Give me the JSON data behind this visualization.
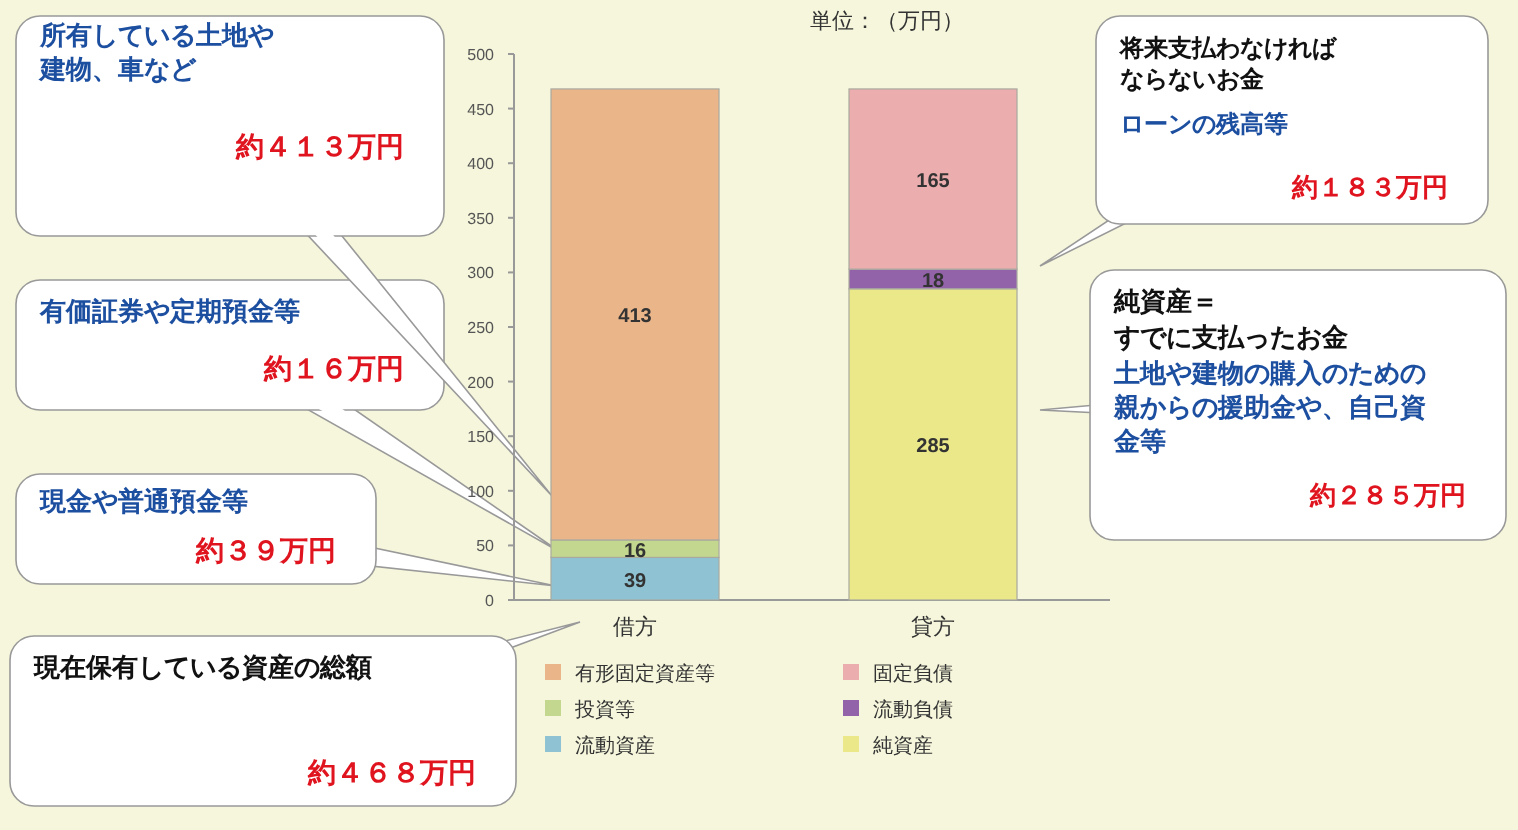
{
  "chart_data": {
    "type": "bar",
    "stacked": true,
    "categories": [
      "借方",
      "貸方"
    ],
    "series": [
      {
        "name": "流動資産",
        "color": "#8fc3d3",
        "values": [
          39,
          null
        ]
      },
      {
        "name": "投資等",
        "color": "#c3d88e",
        "values": [
          16,
          null
        ]
      },
      {
        "name": "有形固定資産等",
        "color": "#ebb58a",
        "values": [
          413,
          null
        ]
      },
      {
        "name": "純資産",
        "color": "#ebe88a",
        "values": [
          null,
          285
        ]
      },
      {
        "name": "流動負債",
        "color": "#9363aa",
        "values": [
          null,
          18
        ]
      },
      {
        "name": "固定負債",
        "color": "#ebadae",
        "values": [
          null,
          165
        ]
      }
    ],
    "ylim": [
      0,
      500
    ],
    "yticks": [
      0,
      50,
      100,
      150,
      200,
      250,
      300,
      350,
      400,
      450,
      500
    ],
    "grid": false,
    "data_labels": true,
    "legend": "bottom",
    "annotations": [
      "単位：（万円）",
      "所有している土地や建物、車など",
      "約４１３万円",
      "有価証券や定期預金等",
      "約１６万円",
      "現金や普通預金等",
      "約３９万円",
      "現在保有している資産の総額",
      "約４６８万円",
      "将来支払わなければならないお金",
      "ローンの残高等",
      "約１８３万円",
      "純資産＝",
      "すでに支払ったお金",
      "土地や建物の購入のための親からの援助金や、自己資金等",
      "約２８５万円"
    ]
  }
}
